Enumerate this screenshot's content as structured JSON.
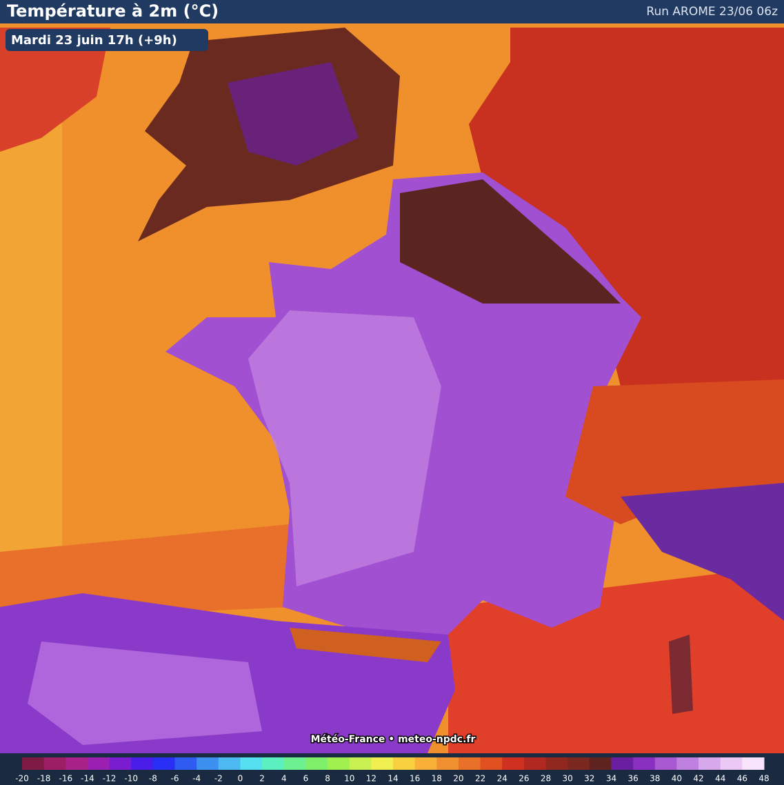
{
  "header": {
    "title": "Température à 2m (°C)",
    "run": "Run AROME 23/06 06z",
    "date": "Mardi 23 juin 17h (+9h)"
  },
  "credit": "Météo-France • meteo-npdc.fr",
  "legend": {
    "ticks": [
      -20,
      -18,
      -16,
      -14,
      -12,
      -10,
      -8,
      -6,
      -4,
      -2,
      0,
      2,
      4,
      6,
      8,
      10,
      12,
      14,
      16,
      18,
      20,
      22,
      24,
      26,
      28,
      30,
      32,
      34,
      36,
      38,
      40,
      42,
      44,
      46,
      48
    ],
    "colors": [
      "#7d1b45",
      "#9c1f63",
      "#a8228a",
      "#9b1fb0",
      "#7a1dd0",
      "#4a1de8",
      "#2a2ff5",
      "#2e5cf0",
      "#3d8ff0",
      "#4cb9f0",
      "#55e0f0",
      "#5cf0c0",
      "#6cf090",
      "#80f06a",
      "#a0f050",
      "#c8f050",
      "#f0f050",
      "#f8d040",
      "#f8b038",
      "#f09030",
      "#e87028",
      "#e05020",
      "#d03020",
      "#b02820",
      "#902820",
      "#7a2820",
      "#602420",
      "#6a1fa0",
      "#8a30c0",
      "#a858d0",
      "#c080e0",
      "#d8a8ec",
      "#ecc8f4",
      "#f8e4fc"
    ]
  }
}
